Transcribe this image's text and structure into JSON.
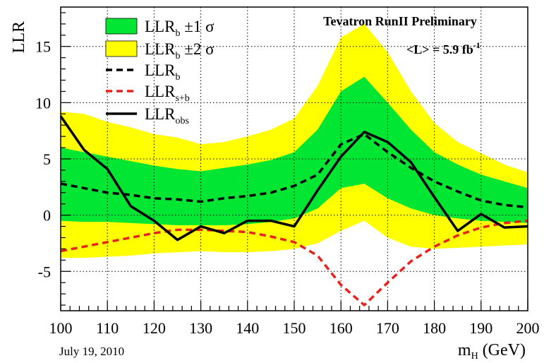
{
  "chart_data": {
    "type": "line",
    "title": "",
    "xlabel": "m_H (GeV)",
    "xlabel_main": "m",
    "xlabel_sub": "H",
    "xlabel_unit": " (GeV)",
    "ylabel": "LLR",
    "xlim": [
      100,
      200
    ],
    "ylim": [
      -8.5,
      18.5
    ],
    "x_ticks": [
      100,
      110,
      120,
      130,
      140,
      150,
      160,
      170,
      180,
      190,
      200
    ],
    "y_ticks": [
      -5,
      0,
      5,
      10,
      15
    ],
    "grid": true,
    "legend_position": "top-left",
    "header_line1": "Tevatron RunII Preliminary",
    "header_line2": "<L> = 5.9 fb",
    "header_line2_sup": "-1",
    "date_note": "July 19, 2010",
    "x": [
      100,
      105,
      110,
      115,
      120,
      125,
      130,
      135,
      140,
      145,
      150,
      155,
      160,
      165,
      170,
      175,
      180,
      185,
      190,
      195,
      200
    ],
    "series": [
      {
        "name": "LLR_b ±2 σ",
        "legend_main": "LLR",
        "legend_sub": "b",
        "legend_suffix": " ±2 σ",
        "kind": "band",
        "color": "#ffff00",
        "upper": [
          9.2,
          9.0,
          8.3,
          7.8,
          7.2,
          6.9,
          6.3,
          6.5,
          7.0,
          7.6,
          8.6,
          11.5,
          15.8,
          17.0,
          14.5,
          11.0,
          8.2,
          6.5,
          5.5,
          4.5,
          3.8
        ],
        "lower": [
          -3.8,
          -3.8,
          -3.7,
          -3.6,
          -3.4,
          -3.3,
          -3.2,
          -3.3,
          -3.3,
          -3.2,
          -3.0,
          -2.5,
          -1.4,
          -0.5,
          -2.0,
          -2.8,
          -3.0,
          -2.9,
          -2.8,
          -2.7,
          -2.6
        ]
      },
      {
        "name": "LLR_b ±1 σ",
        "legend_main": "LLR",
        "legend_sub": "b",
        "legend_suffix": " ±1 σ",
        "kind": "band",
        "color": "#00e632",
        "upper": [
          6.0,
          5.6,
          5.2,
          4.8,
          4.4,
          4.1,
          3.9,
          4.2,
          4.5,
          4.9,
          5.6,
          7.6,
          11.0,
          12.3,
          10.0,
          7.6,
          5.6,
          4.5,
          3.6,
          3.0,
          2.4
        ],
        "lower": [
          -0.5,
          -0.6,
          -0.6,
          -0.7,
          -0.8,
          -0.9,
          -0.9,
          -0.9,
          -0.8,
          -0.6,
          -0.3,
          0.6,
          2.4,
          2.8,
          1.5,
          0.6,
          0.0,
          -0.3,
          -0.5,
          -0.6,
          -0.7
        ]
      },
      {
        "name": "LLR_b",
        "legend_main": "LLR",
        "legend_sub": "b",
        "legend_suffix": "",
        "kind": "line",
        "dash": true,
        "color": "#000000",
        "values": [
          2.8,
          2.4,
          2.0,
          1.8,
          1.5,
          1.4,
          1.2,
          1.5,
          1.7,
          2.0,
          2.6,
          3.6,
          6.3,
          7.2,
          5.6,
          4.2,
          3.0,
          2.1,
          1.3,
          0.9,
          0.7
        ]
      },
      {
        "name": "LLR_s+b",
        "legend_main": "LLR",
        "legend_sub": "s+b",
        "legend_suffix": "",
        "kind": "line",
        "dash": true,
        "color": "#e8231e",
        "values": [
          -3.2,
          -2.8,
          -2.4,
          -2.0,
          -1.6,
          -1.3,
          -1.3,
          -1.4,
          -1.5,
          -1.9,
          -2.4,
          -3.6,
          -6.2,
          -8.0,
          -6.0,
          -4.1,
          -2.8,
          -1.8,
          -1.1,
          -0.7,
          -0.5
        ]
      },
      {
        "name": "LLR_obs",
        "legend_main": "LLR",
        "legend_sub": "obs",
        "legend_suffix": "",
        "kind": "line",
        "dash": false,
        "color": "#000000",
        "values": [
          8.8,
          5.8,
          4.1,
          0.8,
          -0.5,
          -2.2,
          -1.0,
          -1.6,
          -0.5,
          -0.5,
          -1.0,
          2.2,
          5.2,
          7.4,
          6.5,
          4.7,
          1.6,
          -1.4,
          0.1,
          -1.1,
          -1.0
        ]
      }
    ]
  }
}
